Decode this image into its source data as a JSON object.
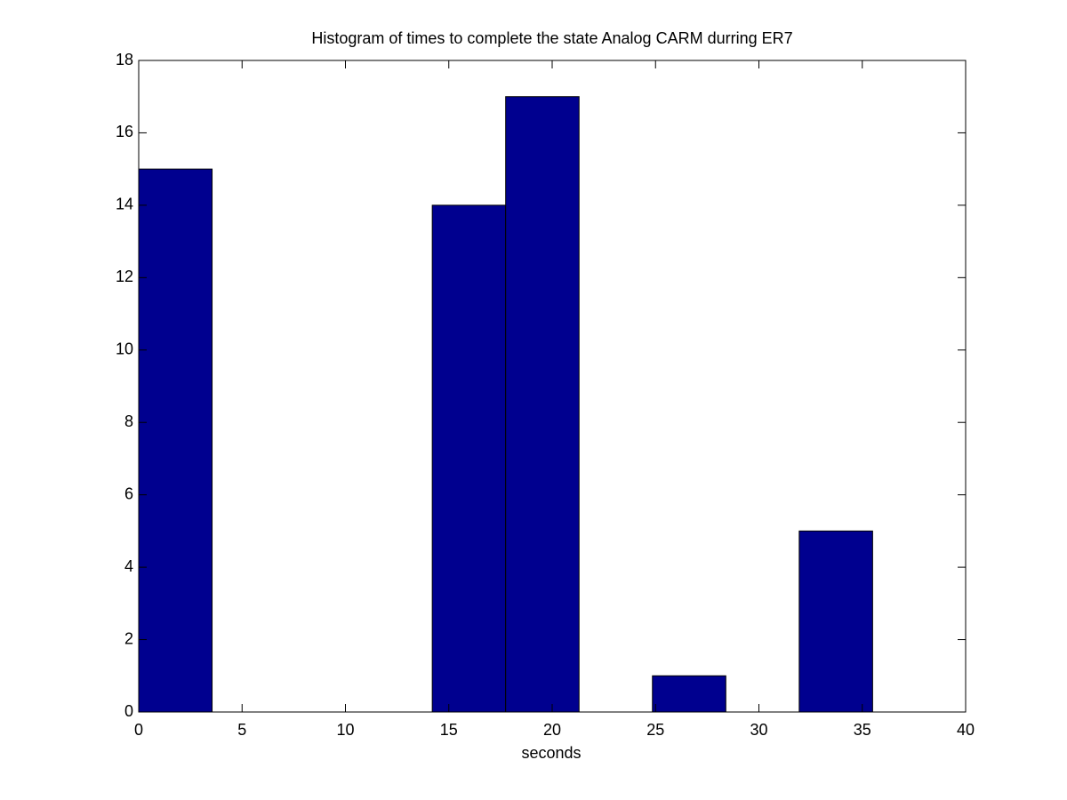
{
  "chart_data": {
    "type": "histogram",
    "title": "Histogram of times to complete the state Analog CARM durring ER7",
    "xlabel": "seconds",
    "bins": [
      0,
      3.55,
      7.1,
      10.65,
      14.2,
      17.75,
      21.3,
      24.85,
      28.4,
      31.95,
      35.5
    ],
    "values": [
      15,
      0,
      0,
      0,
      14,
      17,
      0,
      1,
      0,
      5
    ],
    "color": "#00008f",
    "xlim": [
      0,
      40
    ],
    "xticks": [
      0,
      5,
      10,
      15,
      20,
      25,
      30,
      35,
      40
    ],
    "ylim": [
      0,
      18
    ],
    "yticks": [
      0,
      2,
      4,
      6,
      8,
      10,
      12,
      14,
      16,
      18
    ],
    "grid": false
  }
}
